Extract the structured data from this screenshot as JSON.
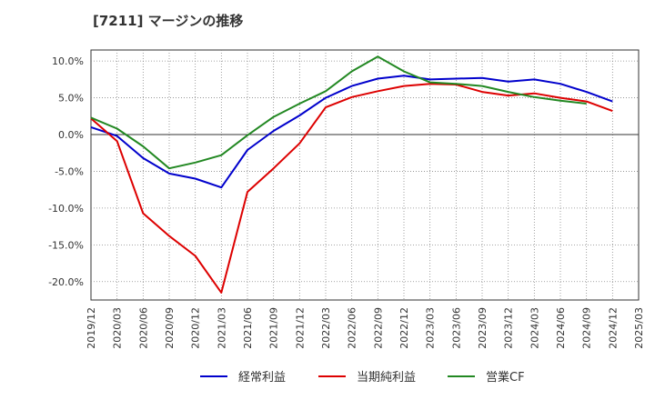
{
  "title": "[7211]  マージンの推移",
  "chart_data": {
    "type": "line",
    "title": "[7211]  マージンの推移",
    "xlabel": "",
    "ylabel": "",
    "ylim": [
      -22.5,
      11.5
    ],
    "y_ticks": [
      10,
      5,
      0,
      -5,
      -10,
      -15,
      -20
    ],
    "y_tick_labels": [
      "10.0%",
      "5.0%",
      "0.0%",
      "-5.0%",
      "-10.0%",
      "-15.0%",
      "-20.0%"
    ],
    "x_tick_labels": [
      "2019/12",
      "2020/03",
      "2020/06",
      "2020/09",
      "2020/12",
      "2021/03",
      "2021/06",
      "2021/09",
      "2021/12",
      "2022/03",
      "2022/06",
      "2022/09",
      "2022/12",
      "2023/03",
      "2023/06",
      "2023/09",
      "2023/12",
      "2024/03",
      "2024/06",
      "2024/09",
      "2024/12",
      "2025/03"
    ],
    "x": [
      "2019/12",
      "2020/03",
      "2020/06",
      "2020/09",
      "2020/12",
      "2021/03",
      "2021/06",
      "2021/09",
      "2021/12",
      "2022/03",
      "2022/06",
      "2022/09",
      "2022/12",
      "2023/03",
      "2023/06",
      "2023/09",
      "2023/12",
      "2024/03",
      "2024/06",
      "2024/09",
      "2024/12"
    ],
    "grid": true,
    "legend_position": "bottom",
    "series": [
      {
        "name": "経常利益",
        "color": "#0000cc",
        "values": [
          1.0,
          -0.2,
          -3.2,
          -5.3,
          -6.0,
          -7.2,
          -2.1,
          0.5,
          2.6,
          5.0,
          6.6,
          7.6,
          8.0,
          7.5,
          7.6,
          7.7,
          7.2,
          7.5,
          6.9,
          5.8,
          4.5
        ]
      },
      {
        "name": "当期純利益",
        "color": "#dd0000",
        "values": [
          2.2,
          -0.9,
          -10.7,
          -13.8,
          -16.5,
          -21.5,
          -7.8,
          -4.6,
          -1.2,
          3.7,
          5.1,
          5.9,
          6.6,
          6.9,
          6.8,
          5.8,
          5.3,
          5.6,
          5.0,
          4.5,
          3.2
        ]
      },
      {
        "name": "営業CF",
        "color": "#228822",
        "values": [
          2.3,
          0.8,
          -1.6,
          -4.6,
          -3.8,
          -2.8,
          -0.1,
          2.4,
          4.2,
          5.9,
          8.6,
          10.6,
          8.6,
          7.1,
          6.9,
          6.6,
          5.8,
          5.1,
          4.6,
          4.2,
          null
        ]
      }
    ]
  }
}
